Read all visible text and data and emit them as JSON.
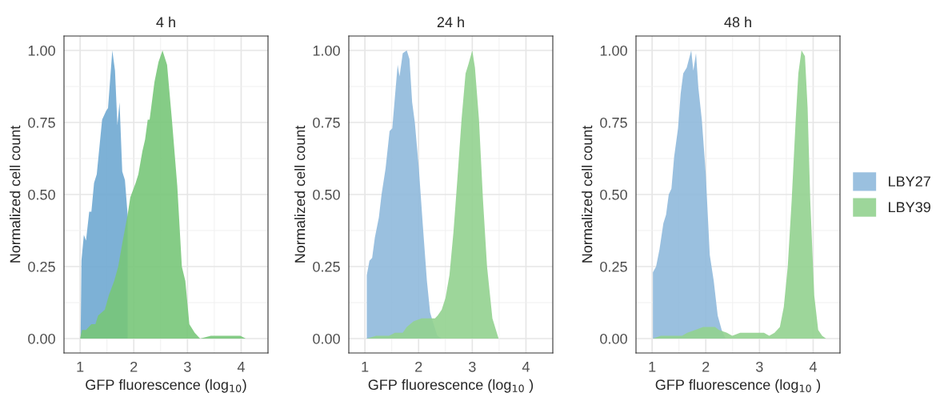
{
  "chart_data": [
    {
      "type": "area",
      "title": "4 h",
      "xlabel": "GFP fluorescence (log$_{10}$)",
      "ylabel": "Normalized cell count",
      "xlim": [
        0.7,
        4.5
      ],
      "xticks": [
        1,
        2,
        3,
        4
      ],
      "ylim": [
        -0.05,
        1.05
      ],
      "yticks": [
        {
          "value": 0,
          "label": "0.00"
        },
        {
          "value": 0.25,
          "label": "0.25"
        },
        {
          "value": 0.5,
          "label": "0.50"
        },
        {
          "value": 0.75,
          "label": "0.75"
        },
        {
          "value": 1,
          "label": "1.00"
        }
      ],
      "grid": true,
      "legend": false,
      "series": [
        {
          "color": "#6fa8d1",
          "x": [
            1.01,
            1.025,
            1.07,
            1.11,
            1.17,
            1.21,
            1.26,
            1.31,
            1.41,
            1.485,
            1.52,
            1.6,
            1.65,
            1.695,
            1.735,
            1.785,
            1.835,
            1.885
          ],
          "values": [
            0,
            0.27,
            0.36,
            0.34,
            0.44,
            0.44,
            0.54,
            0.57,
            0.76,
            0.79,
            0.8,
            1.0,
            0.93,
            0.74,
            0.82,
            0.58,
            0.55,
            0.43
          ]
        },
        {
          "color": "#78c679",
          "x": [
            1.0,
            1.035,
            1.11,
            1.21,
            1.285,
            1.335,
            1.46,
            1.535,
            1.635,
            1.71,
            1.785,
            1.885,
            1.935,
            2.035,
            2.085,
            2.16,
            2.21,
            2.26,
            2.295,
            2.385,
            2.46,
            2.535,
            2.62,
            2.71,
            2.81,
            2.895,
            2.96,
            3.035,
            3.135,
            3.235,
            3.435,
            3.635,
            3.835,
            3.985,
            4.085,
            4.185
          ],
          "values": [
            0,
            0.03,
            0.03,
            0.05,
            0.05,
            0.08,
            0.1,
            0.15,
            0.2,
            0.25,
            0.33,
            0.43,
            0.49,
            0.54,
            0.57,
            0.65,
            0.69,
            0.76,
            0.76,
            0.89,
            0.96,
            1.0,
            0.95,
            0.76,
            0.53,
            0.25,
            0.2,
            0.05,
            0.02,
            0.0,
            0.01,
            0.01,
            0.01,
            0.01,
            0.0,
            0
          ]
        }
      ]
    },
    {
      "type": "area",
      "title": "24 h",
      "xlabel": "GFP fluorescence (log$_{10}$ )",
      "ylabel": "Normalized cell count",
      "xlim": [
        0.7,
        4.5
      ],
      "xticks": [
        1,
        2,
        3,
        4
      ],
      "ylim": [
        -0.05,
        1.05
      ],
      "yticks": [
        {
          "value": 0,
          "label": "0.00"
        },
        {
          "value": 0.25,
          "label": "0.25"
        },
        {
          "value": 0.5,
          "label": "0.50"
        },
        {
          "value": 0.75,
          "label": "0.75"
        },
        {
          "value": 1,
          "label": "1.00"
        }
      ],
      "grid": true,
      "legend": false,
      "series": [
        {
          "color": "#8fb9dc",
          "x": [
            1.035,
            1.035,
            1.085,
            1.135,
            1.185,
            1.26,
            1.31,
            1.385,
            1.46,
            1.51,
            1.56,
            1.61,
            1.645,
            1.705,
            1.78,
            1.83,
            1.88,
            1.93,
            2.005,
            2.08,
            2.155,
            2.215,
            2.28,
            2.35,
            2.43
          ],
          "values": [
            0,
            0.22,
            0.27,
            0.28,
            0.35,
            0.42,
            0.5,
            0.59,
            0.72,
            0.73,
            0.84,
            0.95,
            0.91,
            0.99,
            1.0,
            0.97,
            0.82,
            0.75,
            0.59,
            0.39,
            0.2,
            0.09,
            0.05,
            0.01,
            0
          ]
        },
        {
          "color": "#92d18f",
          "x": [
            1.035,
            1.21,
            1.36,
            1.4,
            1.45,
            1.56,
            1.705,
            1.78,
            1.905,
            2.055,
            2.18,
            2.305,
            2.355,
            2.43,
            2.5,
            2.575,
            2.65,
            2.725,
            2.8,
            2.875,
            2.925,
            3.0,
            3.05,
            3.125,
            3.2,
            3.275,
            3.375,
            3.49,
            3.6
          ],
          "values": [
            0,
            0.01,
            0.01,
            0.01,
            0.01,
            0.02,
            0.02,
            0.04,
            0.06,
            0.07,
            0.07,
            0.07,
            0.08,
            0.1,
            0.14,
            0.22,
            0.37,
            0.56,
            0.76,
            0.92,
            0.95,
            1.0,
            0.94,
            0.76,
            0.48,
            0.25,
            0.07,
            0.0,
            0
          ]
        }
      ]
    },
    {
      "type": "area",
      "title": "48 h",
      "xlabel": "GFP fluorescence (log$_{10}$ )",
      "ylabel": "Normalized cell count",
      "xlim": [
        0.7,
        4.5
      ],
      "xticks": [
        1,
        2,
        3,
        4
      ],
      "ylim": [
        -0.05,
        1.05
      ],
      "yticks": [
        {
          "value": 0,
          "label": "0.00"
        },
        {
          "value": 0.25,
          "label": "0.25"
        },
        {
          "value": 0.5,
          "label": "0.50"
        },
        {
          "value": 0.75,
          "label": "0.75"
        },
        {
          "value": 1,
          "label": "1.00"
        }
      ],
      "grid": true,
      "legend": "right",
      "series": [
        {
          "name": "LBY27",
          "color": "#8fb9dc",
          "x": [
            1.015,
            1.015,
            1.074,
            1.138,
            1.21,
            1.26,
            1.31,
            1.36,
            1.41,
            1.483,
            1.532,
            1.58,
            1.645,
            1.729,
            1.768,
            1.818,
            1.862,
            1.926,
            2.0,
            2.074,
            2.148,
            2.222,
            2.296,
            2.37
          ],
          "values": [
            0,
            0.23,
            0.25,
            0.31,
            0.4,
            0.43,
            0.5,
            0.52,
            0.63,
            0.73,
            0.85,
            0.92,
            0.94,
            1.0,
            0.93,
            0.99,
            0.87,
            0.76,
            0.57,
            0.29,
            0.2,
            0.08,
            0.03,
            0
          ]
        },
        {
          "name": "LBY39",
          "color": "#92d18f",
          "x": [
            1.015,
            1.163,
            1.31,
            1.41,
            1.557,
            1.655,
            1.803,
            1.951,
            2.049,
            2.172,
            2.246,
            2.394,
            2.493,
            2.64,
            2.837,
            3.084,
            3.182,
            3.281,
            3.38,
            3.453,
            3.527,
            3.6,
            3.675,
            3.724,
            3.783,
            3.847,
            3.897,
            3.946,
            4.02,
            4.094,
            4.167,
            4.24
          ],
          "values": [
            0,
            0.01,
            0.01,
            0.01,
            0.01,
            0.02,
            0.03,
            0.04,
            0.04,
            0.04,
            0.03,
            0.02,
            0.01,
            0.02,
            0.02,
            0.02,
            0.01,
            0.02,
            0.04,
            0.11,
            0.25,
            0.48,
            0.76,
            0.92,
            1.0,
            0.98,
            0.8,
            0.48,
            0.15,
            0.03,
            0.01,
            0
          ]
        }
      ]
    }
  ]
}
